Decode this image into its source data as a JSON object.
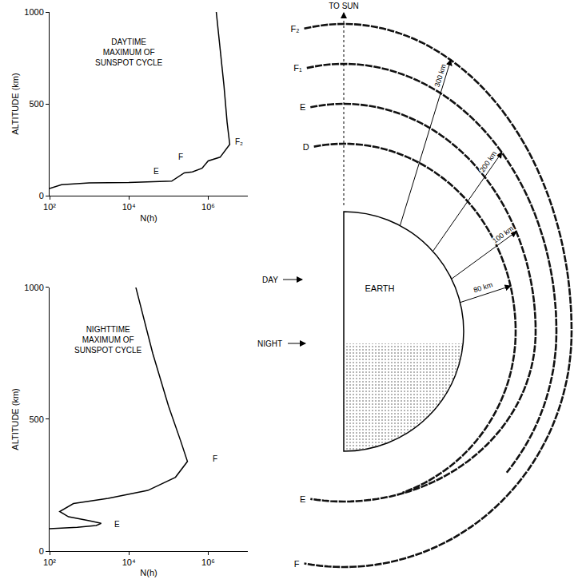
{
  "chart_data": [
    {
      "type": "line",
      "annotations": [
        {
          "text": [
            "DAYTIME",
            "MAXIMUM OF",
            "SUNSPOT CYCLE"
          ],
          "x": 10000,
          "y": 780
        },
        {
          "text": [
            "E"
          ],
          "x": 50000,
          "y": 135
        },
        {
          "text": [
            "F"
          ],
          "x": 200000,
          "y": 210
        },
        {
          "text": [
            "F₂"
          ],
          "x": 6000000,
          "y": 295
        }
      ],
      "x_label": "N(h)",
      "y_label": "ALTITUDE (km)",
      "log": "x",
      "grid": false,
      "color": "#000000",
      "line_style": "solid",
      "xlim": [
        100,
        10000000
      ],
      "xticks": [
        {
          "value": 100,
          "label": "10²"
        },
        {
          "value": 10000,
          "label": "10⁴"
        },
        {
          "value": 1000000,
          "label": "10⁶"
        }
      ],
      "ylim": [
        0,
        1000
      ],
      "yticks": [
        0,
        500,
        1000
      ],
      "x": [
        100,
        200,
        1000,
        10000,
        120000,
        200000,
        250000,
        400000,
        700000,
        1000000,
        2000000,
        3500000,
        3000000,
        2500000,
        2000000,
        1600000
      ],
      "values": [
        40,
        60,
        70,
        72,
        80,
        110,
        125,
        130,
        150,
        190,
        210,
        280,
        400,
        600,
        800,
        1000
      ]
    },
    {
      "type": "line",
      "annotations": [
        {
          "text": [
            "NIGHTTIME",
            "MAXIMUM OF",
            "SUNSPOT CYCLE"
          ],
          "x": 3000,
          "y": 800
        },
        {
          "text": [
            "E"
          ],
          "x": 5000,
          "y": 100
        },
        {
          "text": [
            "F"
          ],
          "x": 1500000,
          "y": 350
        }
      ],
      "x_label": "N(h)",
      "y_label": "ALTITUDE (km)",
      "log": "x",
      "grid": false,
      "color": "#000000",
      "line_style": "solid",
      "xlim": [
        100,
        10000000
      ],
      "xticks": [
        {
          "value": 100,
          "label": "10²"
        },
        {
          "value": 10000,
          "label": "10⁴"
        },
        {
          "value": 1000000,
          "label": "10⁶"
        }
      ],
      "ylim": [
        0,
        1000
      ],
      "yticks": [
        0,
        500,
        1000
      ],
      "x": [
        100,
        500,
        1500,
        2000,
        1000,
        300,
        180,
        400,
        3000,
        30000,
        150000,
        300000,
        200000,
        100000,
        40000,
        15000
      ],
      "values": [
        85,
        90,
        97,
        105,
        115,
        130,
        150,
        180,
        200,
        230,
        280,
        340,
        420,
        550,
        750,
        1000
      ]
    }
  ],
  "diagram": {
    "to_sun": "TO SUN",
    "day": "DAY",
    "night": "NIGHT",
    "earth": "EARTH",
    "day_layers": [
      {
        "label": "D",
        "height": "80 km"
      },
      {
        "label": "E",
        "height": "100 km"
      },
      {
        "label": "F₁",
        "height": "200 km"
      },
      {
        "label": "F₂",
        "height": "300 km"
      }
    ],
    "night_layers": [
      {
        "label": "E"
      },
      {
        "label": "F"
      }
    ]
  }
}
